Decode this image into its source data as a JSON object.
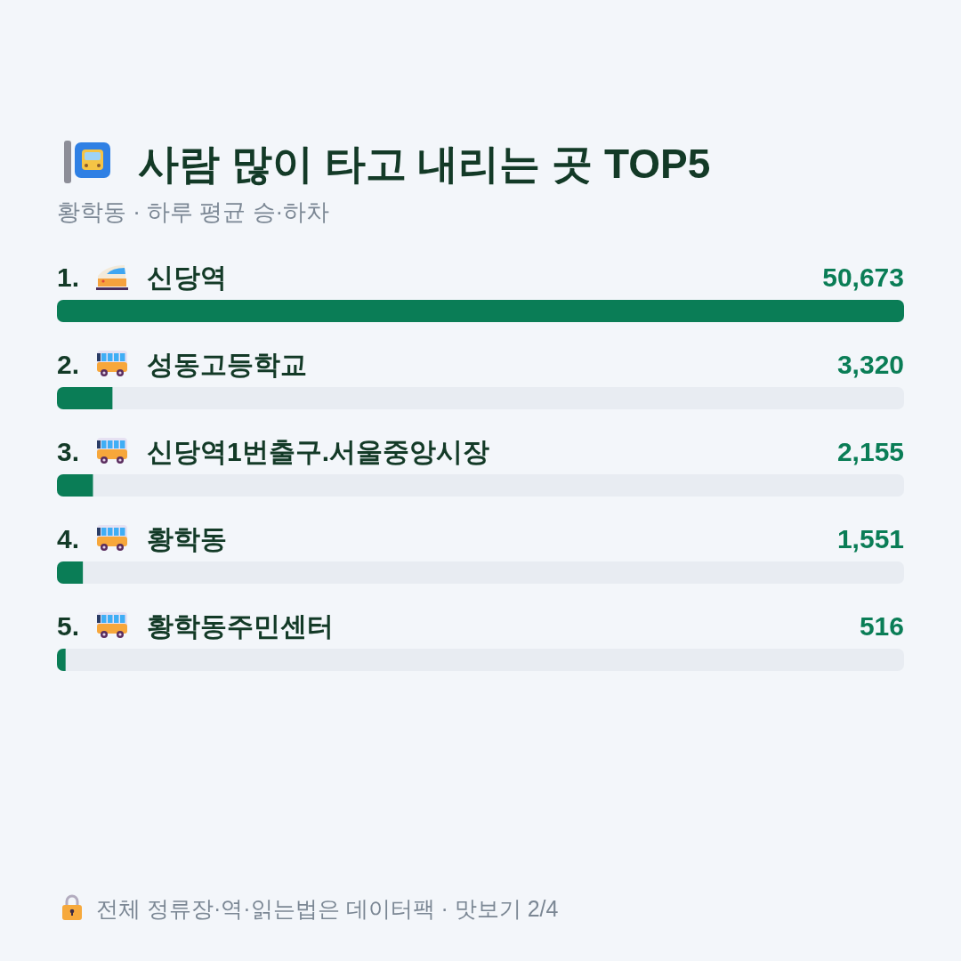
{
  "chart_data": {
    "type": "bar",
    "orientation": "horizontal",
    "title": "사람 많이 타고 내리는 곳 TOP5",
    "subtitle": "황학동 · 하루 평균 승·하차",
    "categories": [
      "1. 신당역",
      "2. 성동고등학교",
      "3. 신당역1번출구.서울중앙시장",
      "4. 황학동",
      "5. 황학동주민센터"
    ],
    "values": [
      50673,
      3320,
      2155,
      1551,
      516
    ],
    "value_labels": [
      "50,673",
      "3,320",
      "2,155",
      "1,551",
      "516"
    ],
    "color": "#0a7d56",
    "xlim": [
      0,
      50673
    ],
    "tick_labels": "y",
    "annotations": [
      "전체 정류장·역·읽는법은 데이터팩 · 맛보기 2/4"
    ]
  }
}
